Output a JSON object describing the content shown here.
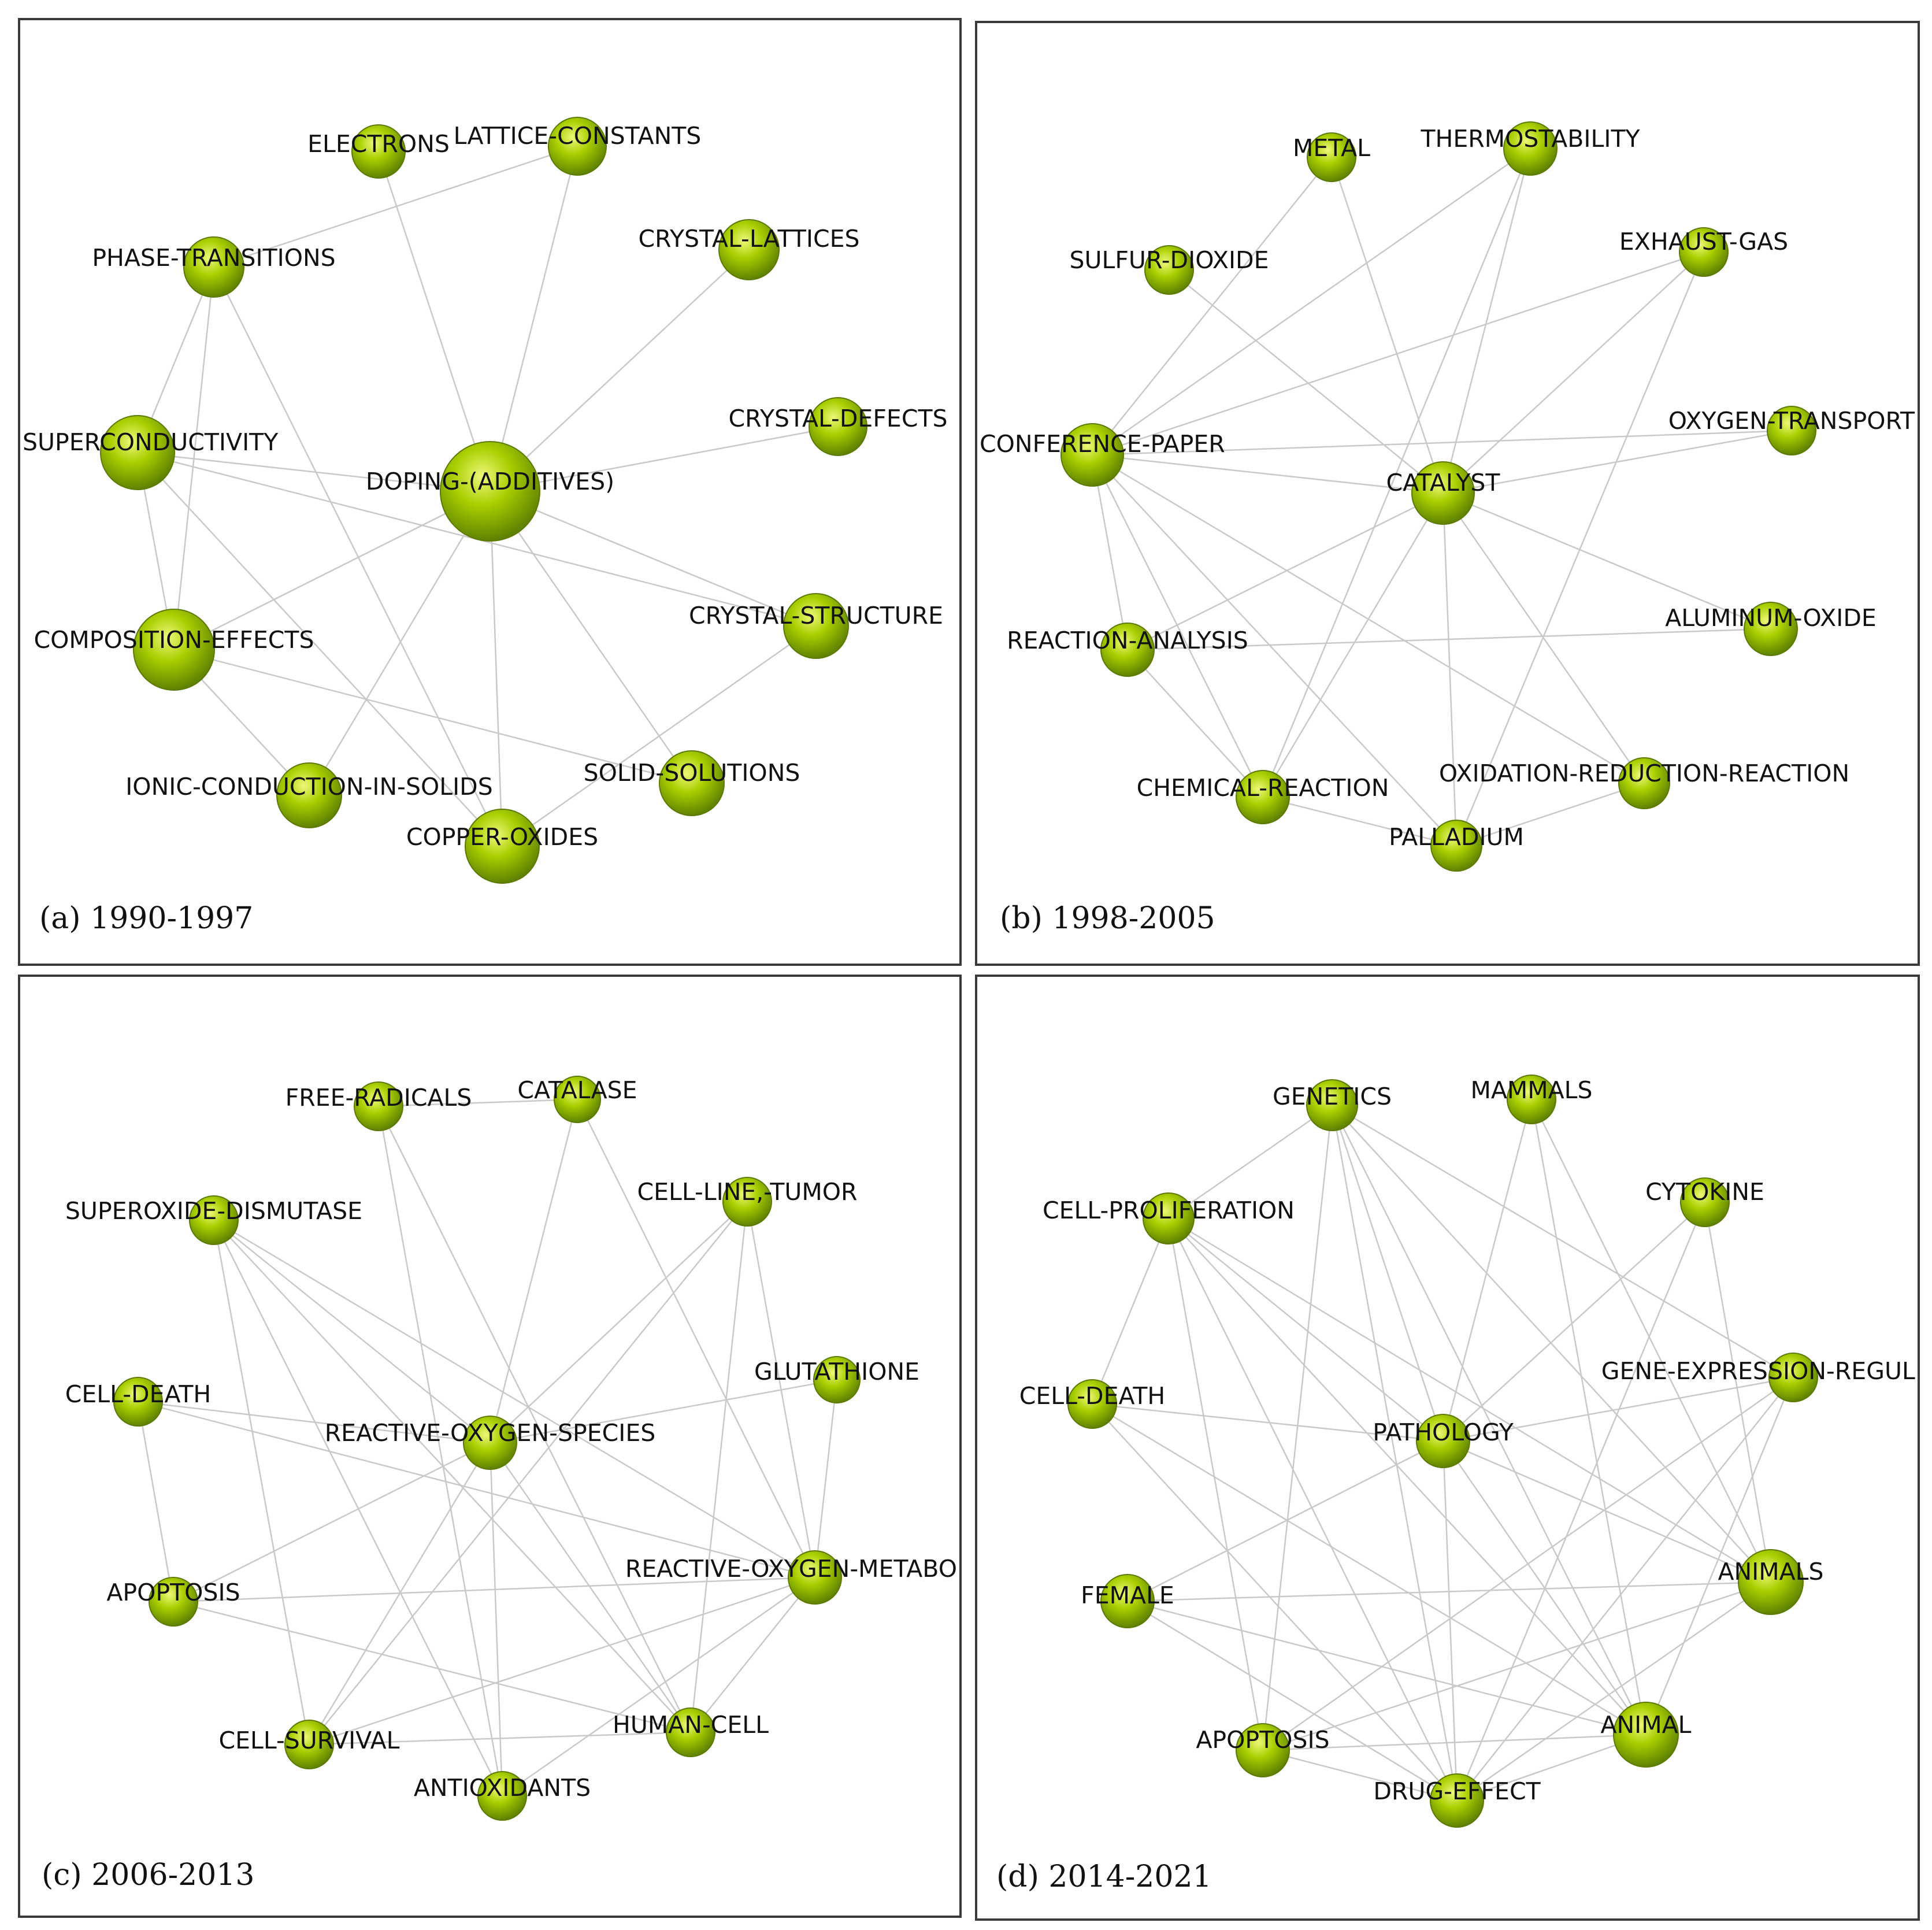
{
  "theme": {
    "node_color": "#9bc400",
    "node_color_dark": "#5a7a00",
    "node_color_light": "#e6f56a",
    "edge_color": "#c9c9c9",
    "frame_color": "#3a3a3a"
  },
  "panels": [
    {
      "caption": "(a) 1990-1997",
      "nodes": [
        {
          "label": "ELECTRONS"
        },
        {
          "label": "LATTICE-CONSTANTS"
        },
        {
          "label": "PHASE-TRANSITIONS"
        },
        {
          "label": "CRYSTAL-LATTICES"
        },
        {
          "label": "CRYSTAL-DEFECTS"
        },
        {
          "label": "SUPERCONDUCTIVITY"
        },
        {
          "label": "DOPING-(ADDITIVES)"
        },
        {
          "label": "COMPOSITION-EFFECTS"
        },
        {
          "label": "CRYSTAL-STRUCTURE"
        },
        {
          "label": "IONIC-CONDUCTION-IN-SOLIDS"
        },
        {
          "label": "SOLID-SOLUTIONS"
        },
        {
          "label": "COPPER-OXIDES"
        }
      ],
      "edges": [
        [
          6,
          0
        ],
        [
          6,
          1
        ],
        [
          6,
          3
        ],
        [
          6,
          4
        ],
        [
          6,
          5
        ],
        [
          6,
          7
        ],
        [
          6,
          8
        ],
        [
          6,
          9
        ],
        [
          6,
          10
        ],
        [
          6,
          11
        ],
        [
          2,
          5
        ],
        [
          2,
          7
        ],
        [
          2,
          11
        ],
        [
          5,
          7
        ],
        [
          5,
          8
        ],
        [
          5,
          11
        ],
        [
          7,
          10
        ],
        [
          7,
          9
        ],
        [
          8,
          11
        ],
        [
          2,
          1
        ]
      ]
    },
    {
      "caption": "(b) 1998-2005",
      "nodes": [
        {
          "label": "METAL"
        },
        {
          "label": "THERMOSTABILITY"
        },
        {
          "label": "SULFUR-DIOXIDE"
        },
        {
          "label": "EXHAUST-GAS"
        },
        {
          "label": "CONFERENCE-PAPER"
        },
        {
          "label": "OXYGEN-TRANSPORT"
        },
        {
          "label": "CATALYST"
        },
        {
          "label": "ALUMINUM-OXIDE"
        },
        {
          "label": "REACTION-ANALYSIS"
        },
        {
          "label": "CHEMICAL-REACTION"
        },
        {
          "label": "OXIDATION-REDUCTION-REACTION"
        },
        {
          "label": "PALLADIUM"
        }
      ],
      "edges": [
        [
          4,
          0
        ],
        [
          4,
          1
        ],
        [
          4,
          3
        ],
        [
          4,
          5
        ],
        [
          4,
          6
        ],
        [
          4,
          8
        ],
        [
          4,
          9
        ],
        [
          4,
          10
        ],
        [
          4,
          11
        ],
        [
          6,
          0
        ],
        [
          6,
          1
        ],
        [
          6,
          2
        ],
        [
          6,
          3
        ],
        [
          6,
          5
        ],
        [
          6,
          7
        ],
        [
          6,
          8
        ],
        [
          6,
          9
        ],
        [
          6,
          10
        ],
        [
          6,
          11
        ],
        [
          1,
          9
        ],
        [
          3,
          11
        ],
        [
          8,
          7
        ],
        [
          8,
          9
        ],
        [
          9,
          11
        ],
        [
          10,
          11
        ]
      ]
    },
    {
      "caption": "(c) 2006-2013",
      "nodes": [
        {
          "label": "FREE-RADICALS"
        },
        {
          "label": "CATALASE"
        },
        {
          "label": "SUPEROXIDE-DISMUTASE"
        },
        {
          "label": "CELL-LINE,-TUMOR"
        },
        {
          "label": "GLUTATHIONE"
        },
        {
          "label": "CELL-DEATH"
        },
        {
          "label": "REACTIVE-OXYGEN-SPECIES"
        },
        {
          "label": "APOPTOSIS"
        },
        {
          "label": "REACTIVE-OXYGEN-METABO"
        },
        {
          "label": "CELL-SURVIVAL"
        },
        {
          "label": "HUMAN-CELL"
        },
        {
          "label": "ANTIOXIDANTS"
        }
      ],
      "edges": [
        [
          0,
          1
        ],
        [
          0,
          10
        ],
        [
          0,
          11
        ],
        [
          1,
          6
        ],
        [
          1,
          8
        ],
        [
          2,
          6
        ],
        [
          2,
          8
        ],
        [
          2,
          10
        ],
        [
          2,
          11
        ],
        [
          3,
          6
        ],
        [
          3,
          9
        ],
        [
          3,
          10
        ],
        [
          3,
          8
        ],
        [
          4,
          6
        ],
        [
          4,
          8
        ],
        [
          5,
          6
        ],
        [
          5,
          8
        ],
        [
          5,
          7
        ],
        [
          6,
          7
        ],
        [
          6,
          9
        ],
        [
          6,
          10
        ],
        [
          6,
          11
        ],
        [
          7,
          8
        ],
        [
          7,
          10
        ],
        [
          8,
          9
        ],
        [
          8,
          11
        ],
        [
          8,
          10
        ],
        [
          9,
          10
        ],
        [
          2,
          9
        ]
      ]
    },
    {
      "caption": "(d) 2014-2021",
      "nodes": [
        {
          "label": "GENETICS"
        },
        {
          "label": "MAMMALS"
        },
        {
          "label": "CELL-PROLIFERATION"
        },
        {
          "label": "CYTOKINE"
        },
        {
          "label": "GENE-EXPRESSION-REGUL"
        },
        {
          "label": "CELL-DEATH"
        },
        {
          "label": "PATHOLOGY"
        },
        {
          "label": "ANIMALS"
        },
        {
          "label": "FEMALE"
        },
        {
          "label": "ANIMAL"
        },
        {
          "label": "APOPTOSIS"
        },
        {
          "label": "DRUG-EFFECT"
        }
      ],
      "edges": [
        [
          0,
          2
        ],
        [
          0,
          4
        ],
        [
          0,
          6
        ],
        [
          0,
          7
        ],
        [
          0,
          9
        ],
        [
          0,
          10
        ],
        [
          0,
          11
        ],
        [
          1,
          6
        ],
        [
          1,
          7
        ],
        [
          1,
          9
        ],
        [
          2,
          5
        ],
        [
          2,
          6
        ],
        [
          2,
          7
        ],
        [
          2,
          9
        ],
        [
          2,
          10
        ],
        [
          2,
          11
        ],
        [
          3,
          6
        ],
        [
          3,
          7
        ],
        [
          3,
          11
        ],
        [
          4,
          6
        ],
        [
          4,
          9
        ],
        [
          4,
          10
        ],
        [
          5,
          6
        ],
        [
          5,
          9
        ],
        [
          5,
          11
        ],
        [
          6,
          7
        ],
        [
          6,
          8
        ],
        [
          6,
          9
        ],
        [
          6,
          11
        ],
        [
          7,
          8
        ],
        [
          7,
          10
        ],
        [
          7,
          11
        ],
        [
          8,
          9
        ],
        [
          8,
          11
        ],
        [
          9,
          10
        ],
        [
          9,
          11
        ],
        [
          10,
          11
        ],
        [
          4,
          11
        ]
      ]
    }
  ]
}
